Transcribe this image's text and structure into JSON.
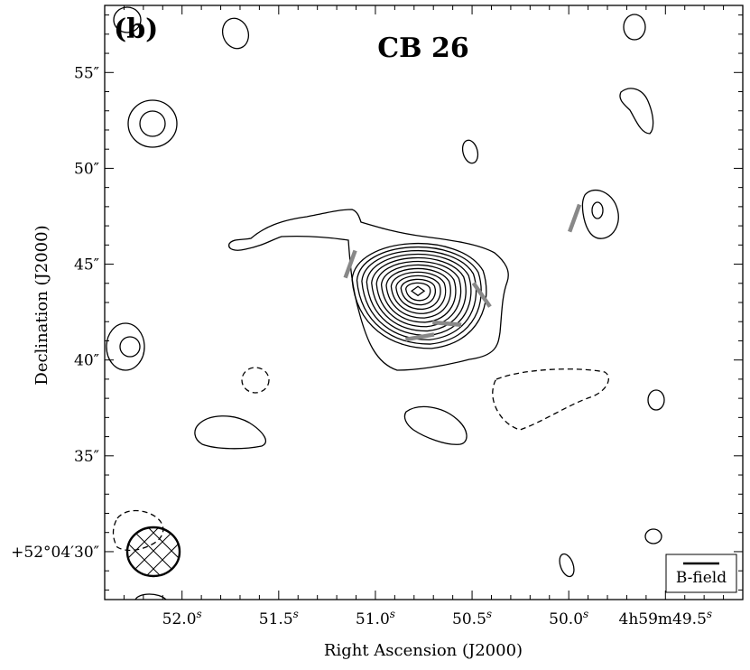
{
  "chart_data": {
    "type": "contour",
    "panel_label": "(b)",
    "title": "CB 26",
    "xlabel": "Right Ascension (J2000)",
    "ylabel": "Declination (J2000)",
    "x_ticks": [
      {
        "value_s": 52.0,
        "label": "52.0",
        "sup": "s"
      },
      {
        "value_s": 51.5,
        "label": "51.5",
        "sup": "s"
      },
      {
        "value_s": 51.0,
        "label": "51.0",
        "sup": "s"
      },
      {
        "value_s": 50.5,
        "label": "50.5",
        "sup": "s"
      },
      {
        "value_s": 50.0,
        "label": "50.0",
        "sup": "s"
      },
      {
        "value_s": 49.5,
        "label": "4h59m49.5",
        "sup": "s"
      }
    ],
    "y_ticks": [
      {
        "value_arcsec": 55,
        "label": "55″"
      },
      {
        "value_arcsec": 50,
        "label": "50″"
      },
      {
        "value_arcsec": 45,
        "label": "45″"
      },
      {
        "value_arcsec": 40,
        "label": "40″"
      },
      {
        "value_arcsec": 35,
        "label": "35″"
      },
      {
        "value_arcsec": 30,
        "label": "+52°04′30″"
      }
    ],
    "xlim_s": [
      52.4,
      49.1
    ],
    "ylim_arcsec": [
      27.5,
      58.5
    ],
    "central_source": {
      "ra_s": 50.78,
      "dec_arcsec": 43.6,
      "contour_levels": 12
    },
    "polarization_vectors": [
      {
        "ra_s": 51.13,
        "dec_arcsec": 45.0,
        "pa_deg": 20
      },
      {
        "ra_s": 50.45,
        "dec_arcsec": 43.4,
        "pa_deg": 145
      },
      {
        "ra_s": 50.63,
        "dec_arcsec": 41.9,
        "pa_deg": 95
      },
      {
        "ra_s": 50.77,
        "dec_arcsec": 41.2,
        "pa_deg": 80
      },
      {
        "ra_s": 49.97,
        "dec_arcsec": 47.4,
        "pa_deg": 20
      }
    ],
    "beam": {
      "ra_s": 52.14,
      "dec_arcsec": 30.8,
      "major_arcsec": 2.7,
      "minor_arcsec": 2.4
    },
    "legend": {
      "label": "B-field",
      "placement": "bottom-right"
    },
    "colors": {
      "contour": "#000000",
      "vector": "#888888",
      "background": "#ffffff"
    }
  }
}
